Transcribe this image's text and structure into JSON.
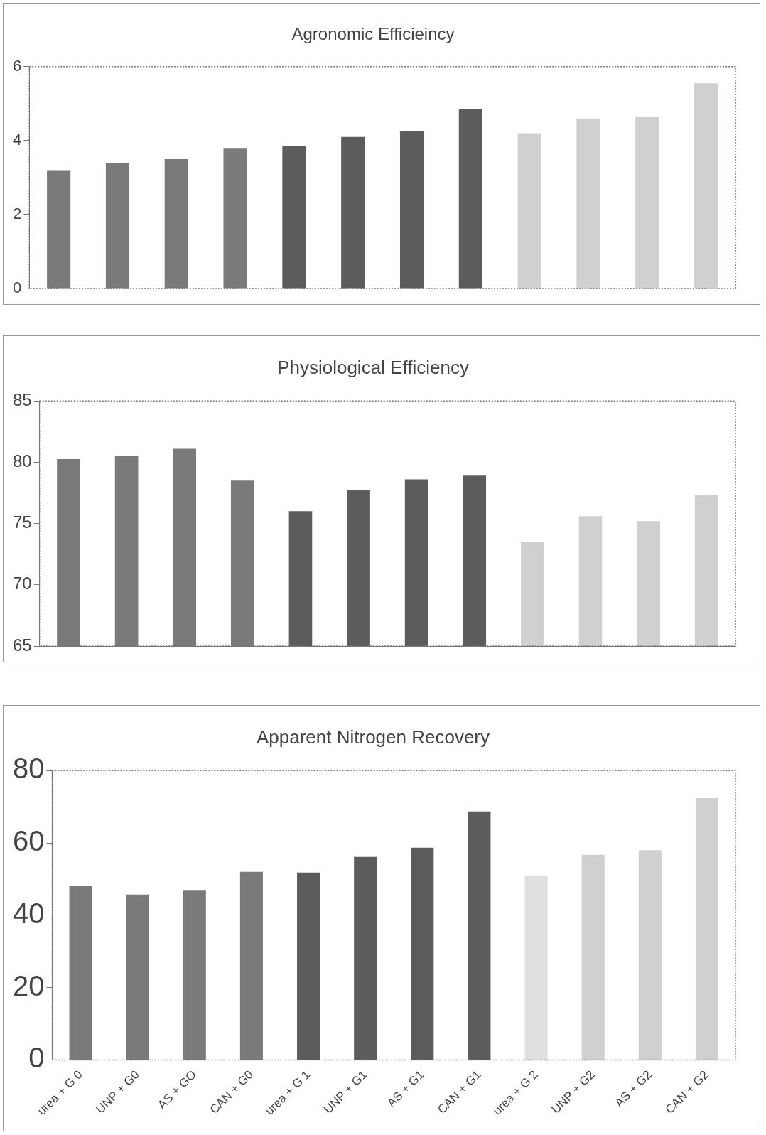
{
  "chart_data": [
    {
      "type": "bar",
      "title": "Agronomic Efficieincy",
      "categories": [
        null,
        null,
        null,
        null,
        null,
        null,
        null,
        null,
        null,
        null,
        null,
        null
      ],
      "values": [
        3.2,
        3.4,
        3.5,
        3.8,
        3.85,
        4.1,
        4.25,
        4.85,
        4.2,
        4.6,
        4.65,
        5.55
      ],
      "colors": [
        "#7a7a7a",
        "#7a7a7a",
        "#7a7a7a",
        "#7a7a7a",
        "#5c5c5c",
        "#5c5c5c",
        "#5c5c5c",
        "#5c5c5c",
        "#d0d0d0",
        "#d0d0d0",
        "#d0d0d0",
        "#d0d0d0"
      ],
      "ylim": [
        0,
        6
      ],
      "yticks": [
        0,
        2,
        4,
        6
      ],
      "grid": false,
      "tick_labels": "y"
    },
    {
      "type": "bar",
      "title": "Physiological Efficiency",
      "categories": [
        null,
        null,
        null,
        null,
        null,
        null,
        null,
        null,
        null,
        null,
        null,
        null
      ],
      "values": [
        80.25,
        80.55,
        81.1,
        78.5,
        76.0,
        77.75,
        78.6,
        78.9,
        73.5,
        75.6,
        75.2,
        77.3
      ],
      "colors": [
        "#7a7a7a",
        "#7a7a7a",
        "#7a7a7a",
        "#7a7a7a",
        "#5c5c5c",
        "#5c5c5c",
        "#5c5c5c",
        "#5c5c5c",
        "#d0d0d0",
        "#d0d0d0",
        "#d0d0d0",
        "#d0d0d0"
      ],
      "ylim": [
        65,
        85
      ],
      "yticks": [
        65,
        70,
        75,
        80,
        85
      ],
      "grid": false,
      "tick_labels": "y"
    },
    {
      "type": "bar",
      "title": "Apparent Nitrogen Recovery",
      "categories": [
        "urea + G 0",
        "UNP + G0",
        "AS + GO",
        "CAN + G0",
        "urea + G 1",
        "UNP + G1",
        "AS + G1",
        "CAN + G1",
        "urea + G 2",
        "UNP + G2",
        "AS + G2",
        "CAN + G2"
      ],
      "values": [
        48.1,
        45.7,
        47.0,
        52.0,
        51.8,
        56.1,
        58.7,
        68.7,
        51.0,
        56.7,
        58.0,
        72.4
      ],
      "colors": [
        "#7a7a7a",
        "#7a7a7a",
        "#7a7a7a",
        "#7a7a7a",
        "#5c5c5c",
        "#5c5c5c",
        "#5c5c5c",
        "#5c5c5c",
        "#e0e0e0",
        "#d0d0d0",
        "#d0d0d0",
        "#d0d0d0"
      ],
      "ylim": [
        0,
        80
      ],
      "yticks": [
        0,
        20,
        40,
        60,
        80
      ],
      "grid": false
    }
  ]
}
